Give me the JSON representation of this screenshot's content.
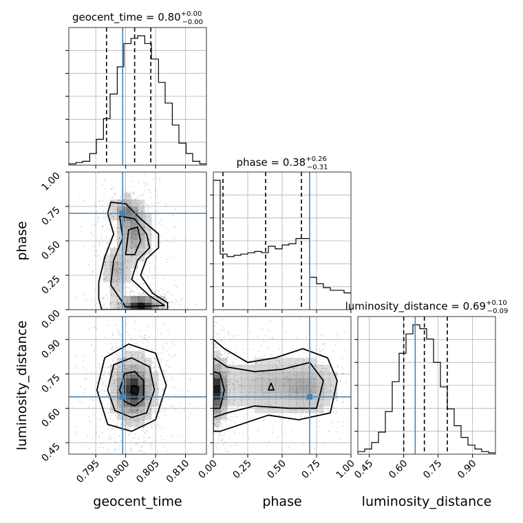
{
  "chart_data": {
    "type": "corner",
    "parameters": [
      "geocent_time",
      "phase",
      "luminosity_distance"
    ],
    "truths": {
      "geocent_time": 0.7995,
      "phase": 0.7,
      "luminosity_distance": 0.65
    },
    "colors": {
      "truth": "#4682b4",
      "hist": "#000000",
      "samples": "#808080",
      "grid": "#b0b0b0"
    },
    "titles": {
      "geocent_time": {
        "prefix": "geocent_time = ",
        "value": "0.80",
        "plus": "+0.00",
        "minus": "−0.00"
      },
      "phase": {
        "prefix": "phase = ",
        "value": "0.38",
        "plus": "+0.26",
        "minus": "−0.31"
      },
      "luminosity_distance": {
        "prefix": "luminosity_distance = ",
        "value": "0.69",
        "plus": "+0.10",
        "minus": "−0.09"
      }
    },
    "axes": {
      "geocent_time": {
        "range": [
          0.7905,
          0.8135
        ],
        "ticks": [
          0.795,
          0.8,
          0.805,
          0.81
        ],
        "tick_labels": [
          "0.795",
          "0.800",
          "0.805",
          "0.810"
        ]
      },
      "phase": {
        "range": [
          0,
          1
        ],
        "ticks": [
          0,
          0.25,
          0.5,
          0.75,
          1
        ],
        "tick_labels": [
          "0.00",
          "0.25",
          "0.50",
          "0.75",
          "1.00"
        ]
      },
      "luminosity_distance": {
        "range": [
          0.4,
          1.0
        ],
        "ticks": [
          0.45,
          0.6,
          0.75,
          0.9
        ],
        "tick_labels": [
          "0.45",
          "0.60",
          "0.75",
          "0.90"
        ]
      }
    },
    "histograms": {
      "geocent_time": {
        "bin_edges": [
          0.7905,
          0.7917,
          0.7928,
          0.794,
          0.7951,
          0.7963,
          0.7974,
          0.7986,
          0.7997,
          0.8009,
          0.802,
          0.8032,
          0.8043,
          0.8055,
          0.8066,
          0.8078,
          0.8089,
          0.8101,
          0.8112,
          0.8124,
          0.8135
        ],
        "counts": [
          0.01,
          0.02,
          0.03,
          0.09,
          0.2,
          0.36,
          0.55,
          0.76,
          0.94,
          0.98,
          1.0,
          0.94,
          0.82,
          0.64,
          0.48,
          0.31,
          0.17,
          0.09,
          0.03,
          0.01
        ],
        "quantiles": [
          0.7968,
          0.8015,
          0.8042
        ]
      },
      "phase": {
        "bin_edges": [
          0,
          0.05,
          0.1,
          0.15,
          0.2,
          0.25,
          0.3,
          0.35,
          0.4,
          0.45,
          0.5,
          0.55,
          0.6,
          0.65,
          0.7,
          0.75,
          0.8,
          0.85,
          0.9,
          0.95,
          1.0
        ],
        "counts": [
          1.0,
          0.43,
          0.41,
          0.42,
          0.43,
          0.44,
          0.45,
          0.44,
          0.49,
          0.47,
          0.5,
          0.51,
          0.55,
          0.55,
          0.25,
          0.2,
          0.17,
          0.15,
          0.15,
          0.13
        ],
        "quantiles": [
          0.07,
          0.38,
          0.64
        ]
      },
      "luminosity_distance": {
        "bin_edges": [
          0.4,
          0.43,
          0.46,
          0.49,
          0.52,
          0.55,
          0.58,
          0.61,
          0.64,
          0.67,
          0.7,
          0.73,
          0.76,
          0.79,
          0.82,
          0.85,
          0.88,
          0.91,
          0.94,
          0.97,
          1.0
        ],
        "counts": [
          0.02,
          0.04,
          0.09,
          0.17,
          0.33,
          0.56,
          0.78,
          0.93,
          1.0,
          0.97,
          0.89,
          0.71,
          0.52,
          0.35,
          0.22,
          0.13,
          0.07,
          0.04,
          0.02,
          0.01
        ],
        "quantiles": [
          0.6,
          0.69,
          0.79
        ]
      }
    },
    "panels_2d": [
      {
        "x": "geocent_time",
        "y": "phase",
        "density_blobs": [
          {
            "cx": 0.8025,
            "cy": 0.04,
            "sx": 0.0022,
            "sy": 0.035,
            "w": 1.0
          },
          {
            "cx": 0.8015,
            "cy": 0.55,
            "sx": 0.0016,
            "sy": 0.12,
            "w": 0.55
          },
          {
            "cx": 0.8,
            "cy": 0.72,
            "sx": 0.0015,
            "sy": 0.06,
            "w": 0.5
          },
          {
            "cx": 0.7985,
            "cy": 0.28,
            "sx": 0.0012,
            "sy": 0.1,
            "w": 0.45
          }
        ],
        "contours": [
          [
            [
              0.7955,
              0.2
            ],
            [
              0.7965,
              0.38
            ],
            [
              0.798,
              0.55
            ],
            [
              0.797,
              0.7
            ],
            [
              0.7975,
              0.78
            ],
            [
              0.8,
              0.77
            ],
            [
              0.8025,
              0.66
            ],
            [
              0.8055,
              0.55
            ],
            [
              0.8055,
              0.45
            ],
            [
              0.8035,
              0.37
            ],
            [
              0.8025,
              0.25
            ],
            [
              0.8045,
              0.12
            ],
            [
              0.807,
              0.05
            ],
            [
              0.807,
              0.0
            ],
            [
              0.796,
              0.0
            ],
            [
              0.7955,
              0.08
            ]
          ],
          [
            [
              0.7975,
              0.18
            ],
            [
              0.798,
              0.36
            ],
            [
              0.7995,
              0.52
            ],
            [
              0.799,
              0.68
            ],
            [
              0.8015,
              0.66
            ],
            [
              0.8035,
              0.55
            ],
            [
              0.804,
              0.45
            ],
            [
              0.802,
              0.36
            ],
            [
              0.801,
              0.22
            ],
            [
              0.804,
              0.1
            ],
            [
              0.8065,
              0.03
            ],
            [
              0.8,
              0.02
            ]
          ],
          [
            [
              0.8,
              0.4
            ],
            [
              0.8005,
              0.58
            ],
            [
              0.802,
              0.6
            ],
            [
              0.8025,
              0.5
            ],
            [
              0.8015,
              0.4
            ]
          ]
        ]
      },
      {
        "x": "geocent_time",
        "y": "luminosity_distance",
        "density_blobs": [
          {
            "cx": 0.8012,
            "cy": 0.68,
            "sx": 0.002,
            "sy": 0.08,
            "w": 1.0
          }
        ],
        "contours": [
          [
            [
              0.7952,
              0.68
            ],
            [
              0.7965,
              0.82
            ],
            [
              0.8005,
              0.88
            ],
            [
              0.805,
              0.84
            ],
            [
              0.8068,
              0.7
            ],
            [
              0.805,
              0.55
            ],
            [
              0.801,
              0.5
            ],
            [
              0.797,
              0.53
            ]
          ],
          [
            [
              0.797,
              0.68
            ],
            [
              0.798,
              0.79
            ],
            [
              0.801,
              0.82
            ],
            [
              0.804,
              0.78
            ],
            [
              0.8048,
              0.68
            ],
            [
              0.8035,
              0.58
            ],
            [
              0.801,
              0.56
            ],
            [
              0.7982,
              0.59
            ]
          ],
          [
            [
              0.799,
              0.68
            ],
            [
              0.7998,
              0.75
            ],
            [
              0.8015,
              0.76
            ],
            [
              0.803,
              0.72
            ],
            [
              0.803,
              0.64
            ],
            [
              0.8015,
              0.61
            ],
            [
              0.7998,
              0.63
            ]
          ],
          [
            [
              0.8008,
              0.67
            ],
            [
              0.8012,
              0.7
            ],
            [
              0.8022,
              0.69
            ],
            [
              0.802,
              0.66
            ]
          ]
        ]
      },
      {
        "x": "phase",
        "y": "luminosity_distance",
        "density_blobs": [
          {
            "cx": 0.03,
            "cy": 0.68,
            "sx": 0.04,
            "sy": 0.08,
            "w": 1.0
          },
          {
            "cx": 0.4,
            "cy": 0.7,
            "sx": 0.22,
            "sy": 0.07,
            "w": 0.45
          },
          {
            "cx": 0.7,
            "cy": 0.69,
            "sx": 0.12,
            "sy": 0.07,
            "w": 0.4
          }
        ],
        "contours": [
          [
            [
              0.0,
              0.9
            ],
            [
              0.08,
              0.86
            ],
            [
              0.25,
              0.8
            ],
            [
              0.45,
              0.82
            ],
            [
              0.65,
              0.86
            ],
            [
              0.83,
              0.82
            ],
            [
              0.9,
              0.72
            ],
            [
              0.85,
              0.58
            ],
            [
              0.62,
              0.55
            ],
            [
              0.4,
              0.57
            ],
            [
              0.2,
              0.53
            ],
            [
              0.05,
              0.5
            ],
            [
              0.0,
              0.5
            ]
          ],
          [
            [
              0.0,
              0.82
            ],
            [
              0.1,
              0.78
            ],
            [
              0.3,
              0.76
            ],
            [
              0.5,
              0.77
            ],
            [
              0.7,
              0.8
            ],
            [
              0.8,
              0.72
            ],
            [
              0.75,
              0.6
            ],
            [
              0.55,
              0.6
            ],
            [
              0.3,
              0.61
            ],
            [
              0.1,
              0.58
            ],
            [
              0.0,
              0.56
            ]
          ],
          [
            [
              0.0,
              0.76
            ],
            [
              0.05,
              0.75
            ],
            [
              0.08,
              0.68
            ],
            [
              0.05,
              0.6
            ],
            [
              0.0,
              0.6
            ]
          ],
          [
            [
              0.4,
              0.68
            ],
            [
              0.42,
              0.71
            ],
            [
              0.44,
              0.68
            ]
          ]
        ]
      }
    ]
  }
}
